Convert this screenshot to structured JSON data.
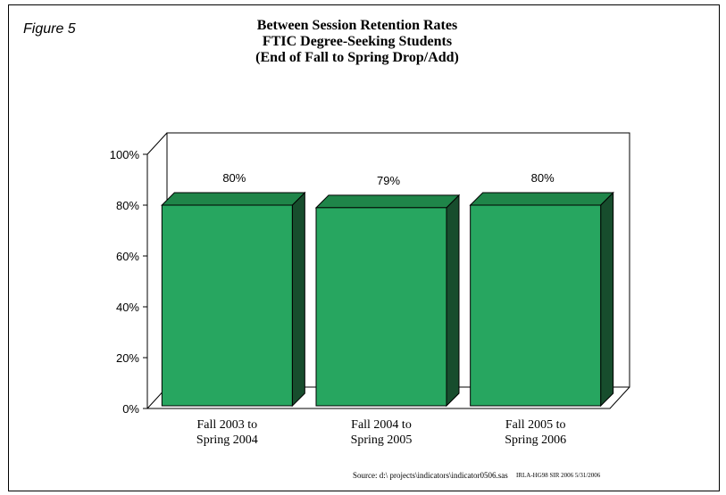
{
  "figure_label": "Figure 5",
  "source_note": "Source: d:\\ projects\\indicators\\indicator0506.sas",
  "stamp_note": "IRLA-HG98 SIR 2006  5/31/2006",
  "colors": {
    "bar_front": "#27A660",
    "bar_top": "#1F8549",
    "bar_side": "#174D2D",
    "axis": "#000000"
  },
  "chart_data": {
    "type": "bar",
    "title_lines": [
      "Between Session Retention Rates",
      "FTIC Degree-Seeking Students",
      "(End of Fall to Spring Drop/Add)"
    ],
    "categories": [
      [
        "Fall 2003 to",
        "Spring 2004"
      ],
      [
        "Fall 2004 to",
        "Spring 2005"
      ],
      [
        "Fall 2005 to",
        "Spring 2006"
      ]
    ],
    "values": [
      80,
      79,
      80
    ],
    "data_labels": [
      "80%",
      "79%",
      "80%"
    ],
    "yticks": [
      "0%",
      "20%",
      "40%",
      "60%",
      "80%",
      "100%"
    ],
    "ylim": [
      0,
      100
    ],
    "xlabel": "",
    "ylabel": "",
    "grid": false,
    "style": "3d"
  }
}
